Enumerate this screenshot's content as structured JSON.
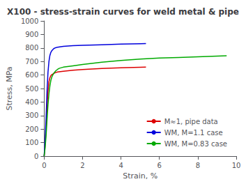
{
  "chart_data": {
    "type": "line",
    "title": "X100 - stress-strain curves for weld metal & pipe",
    "xlabel": "Strain, %",
    "ylabel": "Stress, MPa",
    "xlim": [
      0,
      10.0
    ],
    "ylim": [
      0,
      1000
    ],
    "xticks": [
      0,
      2,
      4,
      6,
      8,
      10
    ],
    "yticks": [
      0,
      100,
      200,
      300,
      400,
      500,
      600,
      700,
      800,
      900,
      1000
    ],
    "grid": false,
    "legend": "lower right",
    "series": [
      {
        "name": "M≈1, pipe data",
        "color": "#dd0000",
        "x": [
          0.0,
          0.05,
          0.1,
          0.15,
          0.2,
          0.25,
          0.3,
          0.35,
          0.4,
          0.5,
          0.6,
          0.7,
          1.0,
          1.5,
          2.0,
          3.0,
          4.0,
          5.0,
          5.3
        ],
        "values": [
          0.0,
          80.0,
          200.0,
          360.0,
          480.0,
          550.0,
          580.0,
          595.0,
          603.0,
          612.0,
          618.0,
          622.0,
          628.0,
          635.0,
          640.0,
          648.0,
          653.0,
          657.0,
          658.0
        ]
      },
      {
        "name": "WM, M=1.1 case",
        "color": "#0000dd",
        "x": [
          0.0,
          0.05,
          0.1,
          0.15,
          0.2,
          0.25,
          0.3,
          0.35,
          0.4,
          0.5,
          0.6,
          0.7,
          1.0,
          1.5,
          2.0,
          3.0,
          4.0,
          5.0,
          5.3
        ],
        "values": [
          0.0,
          120.0,
          280.0,
          480.0,
          620.0,
          700.0,
          745.0,
          768.0,
          780.0,
          795.0,
          802.0,
          806.0,
          812.0,
          817.0,
          820.0,
          824.0,
          828.0,
          831.0,
          832.0
        ]
      },
      {
        "name": "WM, M=0.83 case",
        "color": "#00aa00",
        "x": [
          0.0,
          0.05,
          0.1,
          0.15,
          0.2,
          0.25,
          0.3,
          0.35,
          0.4,
          0.45,
          0.5,
          0.6,
          0.7,
          0.8,
          1.0,
          1.5,
          2.0,
          3.0,
          4.0,
          5.0,
          6.0,
          7.0,
          8.0,
          9.0,
          9.5
        ],
        "values": [
          0.0,
          60.0,
          150.0,
          270.0,
          380.0,
          460.0,
          520.0,
          560.0,
          585.0,
          600.0,
          612.0,
          630.0,
          642.0,
          650.0,
          658.0,
          668.0,
          678.0,
          695.0,
          708.0,
          718.0,
          725.0,
          730.0,
          735.0,
          740.0,
          742.0
        ]
      }
    ]
  }
}
